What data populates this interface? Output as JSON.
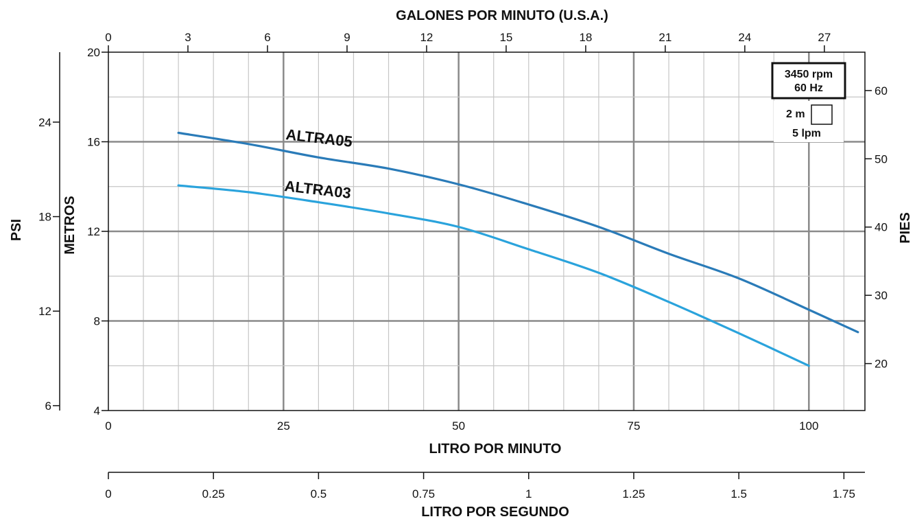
{
  "chart_data": {
    "type": "line",
    "title": "",
    "axes": {
      "bottom_primary": {
        "label": "LITRO POR MINUTO",
        "range": [
          0,
          108
        ],
        "ticks": [
          0,
          25,
          50,
          75,
          100
        ]
      },
      "top": {
        "label": "GALONES POR MINUTO (U.S.A.)",
        "range": [
          0,
          28.53
        ],
        "ticks": [
          0,
          3,
          6,
          9,
          12,
          15,
          18,
          21,
          24,
          27
        ]
      },
      "bottom_secondary": {
        "label": "LITRO POR SEGUNDO",
        "range": [
          0,
          1.8
        ],
        "ticks": [
          "0",
          "0.25",
          "0.5",
          "0.75",
          "1",
          "1.25",
          "1.5",
          "1.75"
        ]
      },
      "left_inner": {
        "label": "METROS",
        "range": [
          4,
          20
        ],
        "ticks": [
          4,
          8,
          12,
          16,
          20
        ]
      },
      "left_outer": {
        "label": "PSI",
        "range": [
          5.69,
          28.44
        ],
        "ticks": [
          6,
          12,
          18,
          24
        ]
      },
      "right": {
        "label": "PIES",
        "range": [
          13.12,
          65.62
        ],
        "ticks": [
          20,
          30,
          40,
          50,
          60
        ]
      }
    },
    "grid": true,
    "series": [
      {
        "name": "ALTRA05",
        "color": "#2A7BB8",
        "x": [
          10,
          20,
          30,
          40,
          50,
          60,
          70,
          80,
          90,
          100,
          107
        ],
        "y": [
          16.4,
          15.9,
          15.3,
          14.8,
          14.1,
          13.2,
          12.2,
          11.0,
          9.9,
          8.5,
          7.5
        ]
      },
      {
        "name": "ALTRA03",
        "color": "#2AA3DC",
        "x": [
          10,
          20,
          30,
          40,
          50,
          60,
          70,
          80,
          90,
          100
        ],
        "y": [
          14.05,
          13.75,
          13.3,
          12.8,
          12.2,
          11.2,
          10.15,
          8.85,
          7.45,
          6.0
        ]
      }
    ],
    "legend": {
      "speed": "3450 rpm",
      "frequency": "60 Hz",
      "scale_meters": "2 m",
      "scale_flow": "5 lpm"
    }
  }
}
